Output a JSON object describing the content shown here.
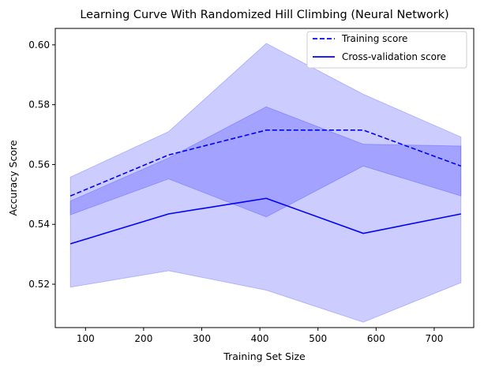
{
  "chart_data": {
    "type": "line",
    "title": "Learning Curve With Randomized Hill Climbing (Neural Network)",
    "xlabel": "Training Set Size",
    "ylabel": "Accuracy Score",
    "xlim": [
      48,
      768
    ],
    "ylim": [
      0.5055,
      0.6055
    ],
    "xticks": [
      100,
      200,
      300,
      400,
      500,
      600,
      700
    ],
    "yticks": [
      0.52,
      0.54,
      0.56,
      0.58,
      0.6
    ],
    "x": [
      74,
      243,
      411,
      578,
      746
    ],
    "grid": false,
    "legend_position": "top-right",
    "series": [
      {
        "name": "Training score",
        "style": "dashed",
        "color": "#0000ff",
        "values": [
          0.5495,
          0.5632,
          0.5715,
          0.5715,
          0.5595
        ],
        "band_lower": [
          0.5432,
          0.5552,
          0.5425,
          0.5595,
          0.5495
        ],
        "band_upper": [
          0.5478,
          0.5622,
          0.5793,
          0.5668,
          0.5662
        ]
      },
      {
        "name": "Cross-validation score",
        "style": "solid",
        "color": "#0000ff",
        "values": [
          0.5335,
          0.5435,
          0.5487,
          0.537,
          0.5435
        ],
        "band_lower": [
          0.519,
          0.5245,
          0.518,
          0.5073,
          0.5205
        ],
        "band_upper": [
          0.5558,
          0.571,
          0.6005,
          0.5835,
          0.5692
        ]
      }
    ]
  }
}
